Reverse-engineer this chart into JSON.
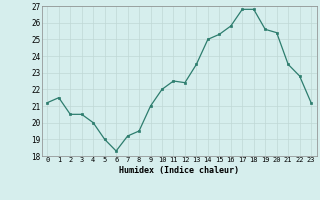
{
  "x": [
    0,
    1,
    2,
    3,
    4,
    5,
    6,
    7,
    8,
    9,
    10,
    11,
    12,
    13,
    14,
    15,
    16,
    17,
    18,
    19,
    20,
    21,
    22,
    23
  ],
  "y": [
    21.2,
    21.5,
    20.5,
    20.5,
    20.0,
    19.0,
    18.3,
    19.2,
    19.5,
    21.0,
    22.0,
    22.5,
    22.4,
    23.5,
    25.0,
    25.3,
    25.8,
    26.8,
    26.8,
    25.6,
    25.4,
    23.5,
    22.8,
    21.2
  ],
  "xlabel": "Humidex (Indice chaleur)",
  "ylim": [
    18,
    27
  ],
  "yticks": [
    18,
    19,
    20,
    21,
    22,
    23,
    24,
    25,
    26,
    27
  ],
  "xticks": [
    0,
    1,
    2,
    3,
    4,
    5,
    6,
    7,
    8,
    9,
    10,
    11,
    12,
    13,
    14,
    15,
    16,
    17,
    18,
    19,
    20,
    21,
    22,
    23
  ],
  "line_color": "#2d7d6e",
  "marker_color": "#2d7d6e",
  "bg_color": "#d6eeed",
  "grid_color": "#c0d8d5",
  "axes_bg": "#d6eeed"
}
